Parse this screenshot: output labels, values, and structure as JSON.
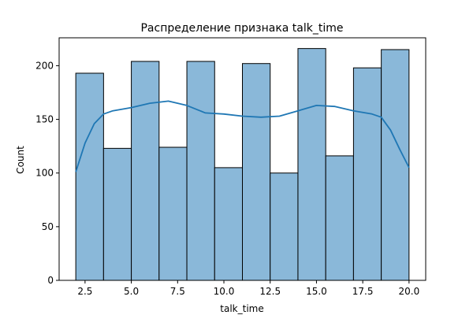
{
  "chart_data": {
    "type": "bar",
    "title": "Распределение признака talk_time",
    "xlabel": "talk_time",
    "ylabel": "Count",
    "xlim": [
      1.1,
      20.9
    ],
    "ylim": [
      0,
      226
    ],
    "xticks": [
      2.5,
      5.0,
      7.5,
      10.0,
      12.5,
      15.0,
      17.5,
      20.0
    ],
    "xtick_labels": [
      "2.5",
      "5.0",
      "7.5",
      "10.0",
      "12.5",
      "15.0",
      "17.5",
      "20.0"
    ],
    "yticks": [
      0,
      50,
      100,
      150,
      200
    ],
    "ytick_labels": [
      "0",
      "50",
      "100",
      "150",
      "200"
    ],
    "bins": [
      {
        "x0": 2.0,
        "x1": 3.5,
        "count": 193
      },
      {
        "x0": 3.5,
        "x1": 5.0,
        "count": 123
      },
      {
        "x0": 5.0,
        "x1": 6.5,
        "count": 204
      },
      {
        "x0": 6.5,
        "x1": 8.0,
        "count": 124
      },
      {
        "x0": 8.0,
        "x1": 9.5,
        "count": 204
      },
      {
        "x0": 9.5,
        "x1": 11.0,
        "count": 105
      },
      {
        "x0": 11.0,
        "x1": 12.5,
        "count": 202
      },
      {
        "x0": 12.5,
        "x1": 14.0,
        "count": 100
      },
      {
        "x0": 14.0,
        "x1": 15.5,
        "count": 216
      },
      {
        "x0": 15.5,
        "x1": 17.0,
        "count": 116
      },
      {
        "x0": 17.0,
        "x1": 18.5,
        "count": 198
      },
      {
        "x0": 18.5,
        "x1": 20.0,
        "count": 215
      }
    ],
    "kde": {
      "x": [
        2.0,
        2.5,
        3.0,
        3.5,
        4.0,
        5.0,
        6.0,
        7.0,
        8.0,
        9.0,
        10.0,
        11.0,
        12.0,
        13.0,
        14.0,
        15.0,
        16.0,
        17.0,
        18.0,
        18.5,
        19.0,
        19.5,
        20.0
      ],
      "y": [
        101,
        128,
        146,
        155,
        158,
        161,
        165,
        167,
        163,
        156,
        155,
        153,
        152,
        153,
        158,
        163,
        162,
        158,
        155,
        152,
        140,
        122,
        105
      ]
    },
    "grid": false,
    "colors": {
      "bar_fill": "#8ab8d9",
      "bar_edge": "#000000",
      "kde_line": "#1f77b4"
    }
  }
}
